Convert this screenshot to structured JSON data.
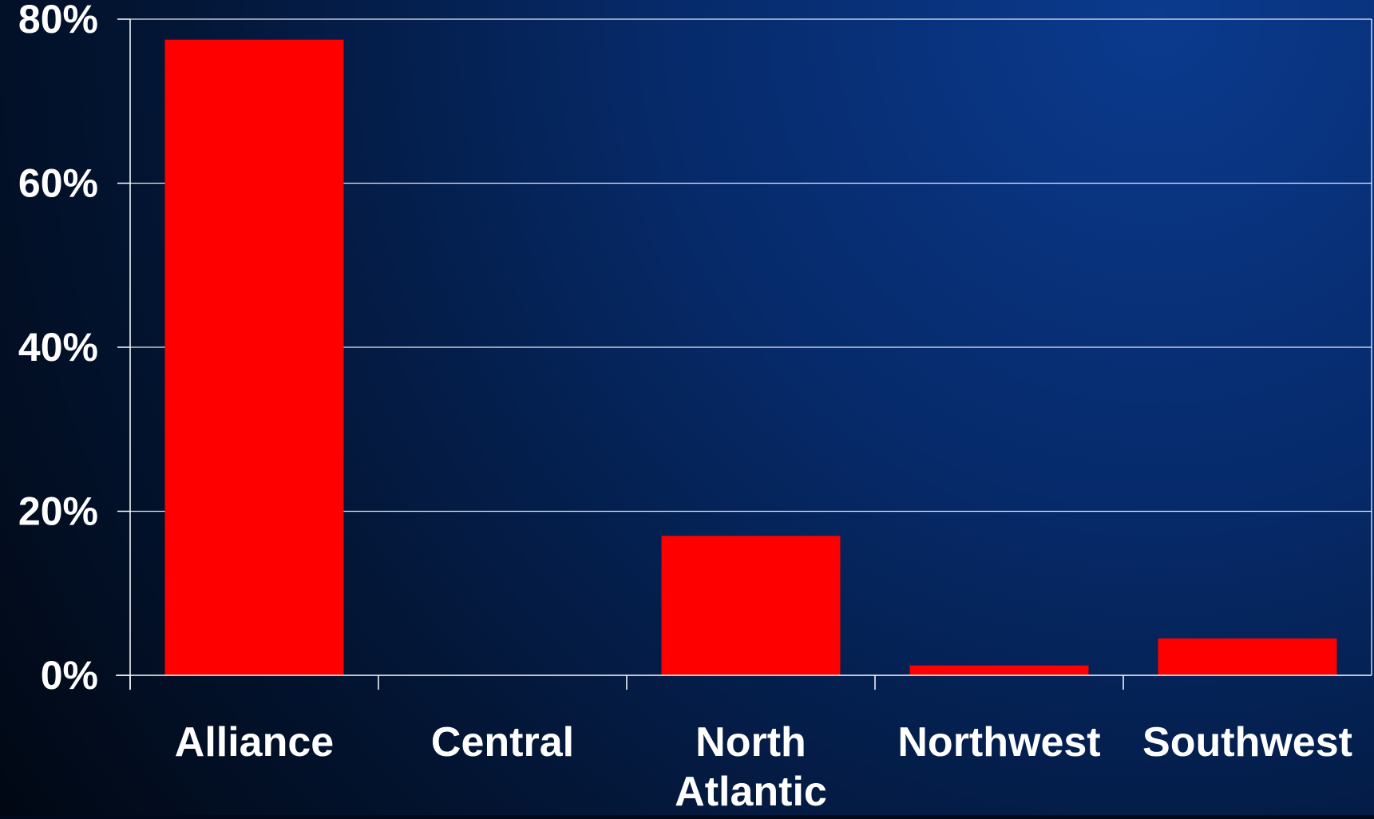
{
  "chart_data": {
    "type": "bar",
    "categories": [
      "Alliance",
      "Central",
      "North Atlantic",
      "Northwest",
      "Southwest"
    ],
    "category_lines": [
      [
        "Alliance"
      ],
      [
        "Central"
      ],
      [
        "North",
        "Atlantic"
      ],
      [
        "Northwest"
      ],
      [
        "Southwest"
      ]
    ],
    "values": [
      77.5,
      0,
      17,
      1.2,
      4.5
    ],
    "value_unit": "%",
    "title": "",
    "xlabel": "",
    "ylabel": "",
    "ylim": [
      0,
      80
    ],
    "yticks": [
      0,
      20,
      40,
      60,
      80
    ],
    "ytick_labels": [
      "0%",
      "20%",
      "40%",
      "60%",
      "80%"
    ],
    "grid": "horizontal",
    "legend": "none",
    "colors": {
      "bar": "#ff0000",
      "background_light": "#0b3a8e",
      "background_dark": "#010814",
      "gridline": "#ffffff",
      "axis": "#ffffff",
      "text": "#ffffff"
    }
  }
}
